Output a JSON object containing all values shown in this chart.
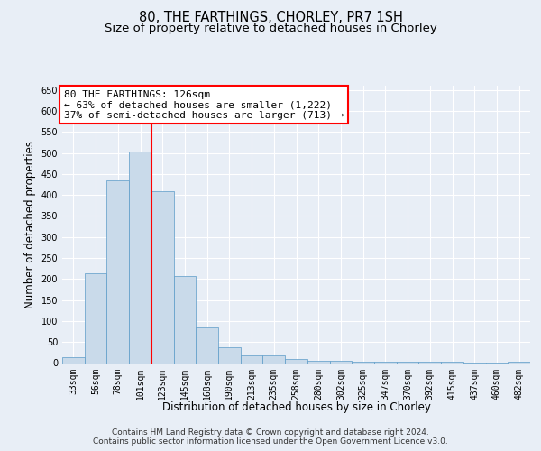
{
  "title1": "80, THE FARTHINGS, CHORLEY, PR7 1SH",
  "title2": "Size of property relative to detached houses in Chorley",
  "xlabel": "Distribution of detached houses by size in Chorley",
  "ylabel": "Number of detached properties",
  "categories": [
    "33sqm",
    "56sqm",
    "78sqm",
    "101sqm",
    "123sqm",
    "145sqm",
    "168sqm",
    "190sqm",
    "213sqm",
    "235sqm",
    "258sqm",
    "280sqm",
    "302sqm",
    "325sqm",
    "347sqm",
    "370sqm",
    "392sqm",
    "415sqm",
    "437sqm",
    "460sqm",
    "482sqm"
  ],
  "values": [
    15,
    213,
    435,
    503,
    408,
    207,
    85,
    38,
    18,
    18,
    10,
    5,
    5,
    3,
    3,
    3,
    3,
    3,
    1,
    1,
    4
  ],
  "bar_color": "#c9daea",
  "bar_edge_color": "#5a9ac8",
  "red_line_x": 3.5,
  "annotation_line1": "80 THE FARTHINGS: 126sqm",
  "annotation_line2": "← 63% of detached houses are smaller (1,222)",
  "annotation_line3": "37% of semi-detached houses are larger (713) →",
  "footer": "Contains HM Land Registry data © Crown copyright and database right 2024.\nContains public sector information licensed under the Open Government Licence v3.0.",
  "ylim": [
    0,
    660
  ],
  "yticks": [
    0,
    50,
    100,
    150,
    200,
    250,
    300,
    350,
    400,
    450,
    500,
    550,
    600,
    650
  ],
  "background_color": "#e8eef6",
  "grid_color": "#ffffff",
  "title_fontsize": 10.5,
  "subtitle_fontsize": 9.5,
  "xlabel_fontsize": 8.5,
  "ylabel_fontsize": 8.5,
  "tick_fontsize": 7,
  "ann_fontsize": 8,
  "footer_fontsize": 6.5
}
